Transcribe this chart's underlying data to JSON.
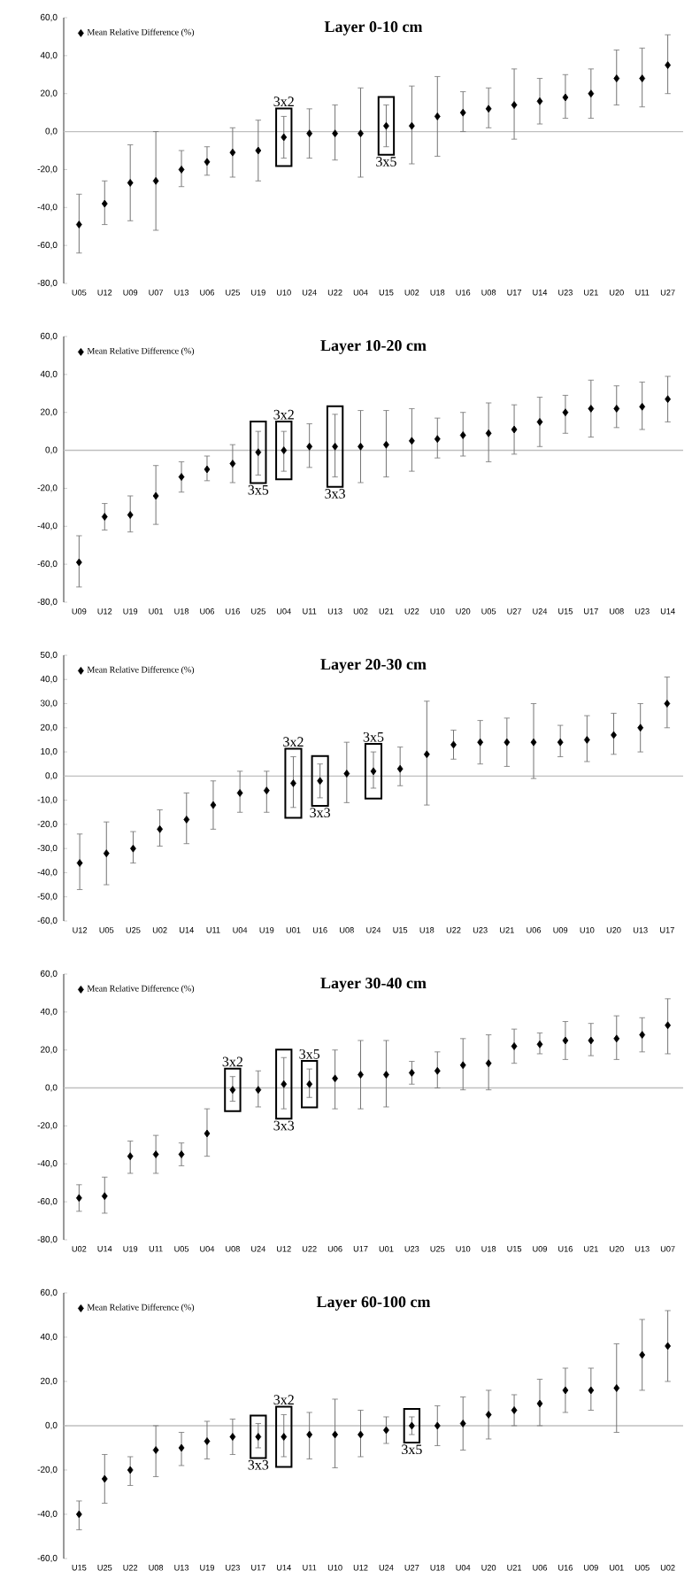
{
  "chart_data": [
    {
      "type": "scatter",
      "title": "Layer 0-10 cm",
      "marker": "diamond",
      "legend": "top left",
      "categories": [
        "U05",
        "U12",
        "U09",
        "U07",
        "U13",
        "U06",
        "U25",
        "U19",
        "U10",
        "U24",
        "U22",
        "U04",
        "U15",
        "U02",
        "U18",
        "U16",
        "U08",
        "U17",
        "U14",
        "U23",
        "U21",
        "U20",
        "U11",
        "U27"
      ],
      "series": [
        {
          "name": "Mean Relative Difference (%)",
          "color": "#000000",
          "values": [
            -49,
            -38,
            -27,
            -26,
            -20,
            -16,
            -11,
            -10,
            -3,
            -1,
            -1,
            -1,
            3,
            3,
            8,
            10,
            12,
            14,
            16,
            18,
            20,
            28,
            28,
            35
          ],
          "errors": [
            [
              -64,
              -33
            ],
            [
              -49,
              -26
            ],
            [
              -47,
              -7
            ],
            [
              -52,
              0
            ],
            [
              -29,
              -10
            ],
            [
              -23,
              -8
            ],
            [
              -24,
              2
            ],
            [
              -26,
              6
            ],
            [
              -14,
              8
            ],
            [
              -14,
              12
            ],
            [
              -15,
              14
            ],
            [
              -24,
              23
            ],
            [
              -8,
              14
            ],
            [
              -17,
              24
            ],
            [
              -13,
              29
            ],
            [
              0,
              21
            ],
            [
              2,
              23
            ],
            [
              -4,
              33
            ],
            [
              4,
              28
            ],
            [
              7,
              30
            ],
            [
              7,
              33
            ],
            [
              14,
              43
            ],
            [
              13,
              44
            ],
            [
              20,
              51
            ]
          ]
        }
      ],
      "ylim": [
        -80,
        60
      ],
      "yticks": [
        {
          "value": -80,
          "label": "-80,0"
        },
        {
          "value": -60,
          "label": "-60,0"
        },
        {
          "value": -40,
          "label": "-40,0"
        },
        {
          "value": -20,
          "label": "-20,0"
        },
        {
          "value": 0,
          "label": "0,0"
        },
        {
          "value": 20,
          "label": "20,0"
        },
        {
          "value": 40,
          "label": "40,0"
        },
        {
          "value": 60,
          "label": "60,0"
        }
      ],
      "ref_lines": [
        {
          "axis": "y",
          "value": 0,
          "color": "#bfbfbf"
        }
      ],
      "annotations": [
        {
          "text": "3x2",
          "x": "U10",
          "y": -3
        },
        {
          "text": "3x5",
          "x": "U15",
          "y": 3
        }
      ]
    },
    {
      "type": "scatter",
      "title": "Layer 10-20 cm",
      "marker": "diamond",
      "legend": "top left",
      "categories": [
        "U09",
        "U12",
        "U19",
        "U01",
        "U18",
        "U06",
        "U16",
        "U25",
        "U04",
        "U11",
        "U13",
        "U02",
        "U21",
        "U22",
        "U10",
        "U20",
        "U05",
        "U27",
        "U24",
        "U15",
        "U17",
        "U08",
        "U23",
        "U14"
      ],
      "series": [
        {
          "name": "Mean Relative Difference (%)",
          "color": "#000000",
          "values": [
            -59,
            -35,
            -34,
            -24,
            -14,
            -10,
            -7,
            -1,
            0,
            2,
            2,
            2,
            3,
            5,
            6,
            8,
            9,
            11,
            15,
            20,
            22,
            22,
            23,
            27
          ],
          "errors": [
            [
              -72,
              -45
            ],
            [
              -42,
              -28
            ],
            [
              -43,
              -24
            ],
            [
              -39,
              -8
            ],
            [
              -22,
              -6
            ],
            [
              -16,
              -3
            ],
            [
              -17,
              3
            ],
            [
              -13,
              10
            ],
            [
              -11,
              10
            ],
            [
              -9,
              14
            ],
            [
              -14,
              19
            ],
            [
              -17,
              21
            ],
            [
              -14,
              21
            ],
            [
              -11,
              22
            ],
            [
              -4,
              17
            ],
            [
              -3,
              20
            ],
            [
              -6,
              25
            ],
            [
              -2,
              24
            ],
            [
              2,
              28
            ],
            [
              9,
              29
            ],
            [
              7,
              37
            ],
            [
              12,
              34
            ],
            [
              11,
              36
            ],
            [
              15,
              39
            ]
          ]
        }
      ],
      "ylim": [
        -80,
        60
      ],
      "yticks": [
        {
          "value": -80,
          "label": "-80,0"
        },
        {
          "value": -60,
          "label": "-60,0"
        },
        {
          "value": -40,
          "label": "-40,0"
        },
        {
          "value": -20,
          "label": "-20,0"
        },
        {
          "value": 0,
          "label": "0,0"
        },
        {
          "value": 20,
          "label": "20,0"
        },
        {
          "value": 40,
          "label": "40,0"
        },
        {
          "value": 60,
          "label": "60,0"
        }
      ],
      "ref_lines": [
        {
          "axis": "y",
          "value": 0,
          "color": "#bfbfbf"
        }
      ],
      "annotations": [
        {
          "text": "3x5",
          "x": "U25",
          "y": -1
        },
        {
          "text": "3x2",
          "x": "U04",
          "y": 0
        },
        {
          "text": "3x3",
          "x": "U13",
          "y": 2
        }
      ]
    },
    {
      "type": "scatter",
      "title": "Layer 20-30 cm",
      "marker": "diamond",
      "legend": "top left",
      "categories": [
        "U12",
        "U05",
        "U25",
        "U02",
        "U14",
        "U11",
        "U04",
        "U19",
        "U01",
        "U16",
        "U08",
        "U24",
        "U15",
        "U18",
        "U22",
        "U23",
        "U21",
        "U06",
        "U09",
        "U10",
        "U20",
        "U13",
        "U17"
      ],
      "series": [
        {
          "name": "Mean Relative Difference (%)",
          "color": "#000000",
          "values": [
            -36,
            -32,
            -30,
            -22,
            -18,
            -12,
            -7,
            -6,
            -3,
            -2,
            1,
            2,
            3,
            9,
            13,
            14,
            14,
            14,
            14,
            15,
            17,
            20,
            30
          ],
          "errors": [
            [
              -47,
              -24
            ],
            [
              -45,
              -19
            ],
            [
              -36,
              -23
            ],
            [
              -29,
              -14
            ],
            [
              -28,
              -7
            ],
            [
              -22,
              -2
            ],
            [
              -15,
              2
            ],
            [
              -15,
              2
            ],
            [
              -13,
              8
            ],
            [
              -9,
              5
            ],
            [
              -11,
              14
            ],
            [
              -5,
              10
            ],
            [
              -4,
              12
            ],
            [
              -12,
              31
            ],
            [
              7,
              19
            ],
            [
              5,
              23
            ],
            [
              4,
              24
            ],
            [
              -1,
              30
            ],
            [
              8,
              21
            ],
            [
              6,
              25
            ],
            [
              9,
              26
            ],
            [
              10,
              30
            ],
            [
              20,
              41
            ]
          ]
        }
      ],
      "ylim": [
        -60,
        50
      ],
      "yticks": [
        {
          "value": -60,
          "label": "-60,0"
        },
        {
          "value": -50,
          "label": "-50,0"
        },
        {
          "value": -40,
          "label": "-40,0"
        },
        {
          "value": -30,
          "label": "-30,0"
        },
        {
          "value": -20,
          "label": "-20,0"
        },
        {
          "value": -10,
          "label": "-10,0"
        },
        {
          "value": 0,
          "label": "0,0"
        },
        {
          "value": 10,
          "label": "10,0"
        },
        {
          "value": 20,
          "label": "20,0"
        },
        {
          "value": 30,
          "label": "30,0"
        },
        {
          "value": 40,
          "label": "40,0"
        },
        {
          "value": 50,
          "label": "50,0"
        }
      ],
      "ref_lines": [
        {
          "axis": "y",
          "value": 0,
          "color": "#bfbfbf"
        }
      ],
      "annotations": [
        {
          "text": "3x2",
          "x": "U01",
          "y": -3
        },
        {
          "text": "3x3",
          "x": "U16",
          "y": -2
        },
        {
          "text": "3x5",
          "x": "U24",
          "y": 2
        }
      ]
    },
    {
      "type": "scatter",
      "title": "Layer 30-40 cm",
      "marker": "diamond",
      "legend": "top left",
      "categories": [
        "U02",
        "U14",
        "U19",
        "U11",
        "U05",
        "U04",
        "U08",
        "U24",
        "U12",
        "U22",
        "U06",
        "U17",
        "U01",
        "U23",
        "U25",
        "U10",
        "U18",
        "U15",
        "U09",
        "U16",
        "U21",
        "U20",
        "U13",
        "U07"
      ],
      "series": [
        {
          "name": "Mean Relative Difference (%)",
          "color": "#000000",
          "values": [
            -58,
            -57,
            -36,
            -35,
            -35,
            -24,
            -1,
            -1,
            2,
            2,
            5,
            7,
            7,
            8,
            9,
            12,
            13,
            22,
            23,
            25,
            25,
            26,
            28,
            33
          ],
          "errors": [
            [
              -65,
              -51
            ],
            [
              -66,
              -47
            ],
            [
              -45,
              -28
            ],
            [
              -45,
              -25
            ],
            [
              -41,
              -29
            ],
            [
              -36,
              -11
            ],
            [
              -7,
              6
            ],
            [
              -10,
              9
            ],
            [
              -11,
              16
            ],
            [
              -5,
              10
            ],
            [
              -11,
              20
            ],
            [
              -11,
              25
            ],
            [
              -10,
              25
            ],
            [
              2,
              14
            ],
            [
              0,
              19
            ],
            [
              -1,
              26
            ],
            [
              -1,
              28
            ],
            [
              13,
              31
            ],
            [
              18,
              29
            ],
            [
              15,
              35
            ],
            [
              17,
              34
            ],
            [
              15,
              38
            ],
            [
              19,
              37
            ],
            [
              18,
              47
            ]
          ]
        }
      ],
      "ylim": [
        -80,
        60
      ],
      "yticks": [
        {
          "value": -80,
          "label": "-80,0"
        },
        {
          "value": -60,
          "label": "-60,0"
        },
        {
          "value": -40,
          "label": "-40,0"
        },
        {
          "value": -20,
          "label": "-20,0"
        },
        {
          "value": 0,
          "label": "0,0"
        },
        {
          "value": 20,
          "label": "20,0"
        },
        {
          "value": 40,
          "label": "40,0"
        },
        {
          "value": 60,
          "label": "60,0"
        }
      ],
      "ref_lines": [
        {
          "axis": "y",
          "value": 0,
          "color": "#bfbfbf"
        }
      ],
      "annotations": [
        {
          "text": "3x2",
          "x": "U08",
          "y": -1
        },
        {
          "text": "3x3",
          "x": "U12",
          "y": 2
        },
        {
          "text": "3x5",
          "x": "U22",
          "y": 2
        }
      ]
    },
    {
      "type": "scatter",
      "title": "Layer 60-100 cm",
      "marker": "diamond",
      "legend": "top left",
      "categories": [
        "U15",
        "U25",
        "U22",
        "U08",
        "U13",
        "U19",
        "U23",
        "U17",
        "U14",
        "U11",
        "U10",
        "U12",
        "U24",
        "U27",
        "U18",
        "U04",
        "U20",
        "U21",
        "U06",
        "U16",
        "U09",
        "U01",
        "U05",
        "U02"
      ],
      "series": [
        {
          "name": "Mean Relative Difference (%)",
          "color": "#000000",
          "values": [
            -40,
            -24,
            -20,
            -11,
            -10,
            -7,
            -5,
            -5,
            -5,
            -4,
            -4,
            -4,
            -2,
            0,
            0,
            1,
            5,
            7,
            10,
            16,
            16,
            17,
            32,
            36
          ],
          "errors": [
            [
              -47,
              -34
            ],
            [
              -35,
              -13
            ],
            [
              -27,
              -14
            ],
            [
              -23,
              0
            ],
            [
              -18,
              -3
            ],
            [
              -15,
              2
            ],
            [
              -13,
              3
            ],
            [
              -10,
              1
            ],
            [
              -14,
              5
            ],
            [
              -15,
              6
            ],
            [
              -19,
              12
            ],
            [
              -14,
              7
            ],
            [
              -8,
              4
            ],
            [
              -4,
              4
            ],
            [
              -9,
              9
            ],
            [
              -11,
              13
            ],
            [
              -6,
              16
            ],
            [
              0,
              14
            ],
            [
              0,
              21
            ],
            [
              6,
              26
            ],
            [
              7,
              26
            ],
            [
              -3,
              37
            ],
            [
              16,
              48
            ],
            [
              20,
              52
            ]
          ]
        }
      ],
      "ylim": [
        -60,
        60
      ],
      "yticks": [
        {
          "value": -60,
          "label": "-60,0"
        },
        {
          "value": -40,
          "label": "-40,0"
        },
        {
          "value": -20,
          "label": "-20,0"
        },
        {
          "value": 0,
          "label": "0,0"
        },
        {
          "value": 20,
          "label": "20,0"
        },
        {
          "value": 40,
          "label": "40,0"
        },
        {
          "value": 60,
          "label": "60,0"
        }
      ],
      "ref_lines": [
        {
          "axis": "y",
          "value": 0,
          "color": "#bfbfbf"
        }
      ],
      "annotations": [
        {
          "text": "3x3",
          "x": "U17",
          "y": -5
        },
        {
          "text": "3x2",
          "x": "U14",
          "y": -5
        },
        {
          "text": "3x5",
          "x": "U27",
          "y": 0
        }
      ]
    }
  ]
}
